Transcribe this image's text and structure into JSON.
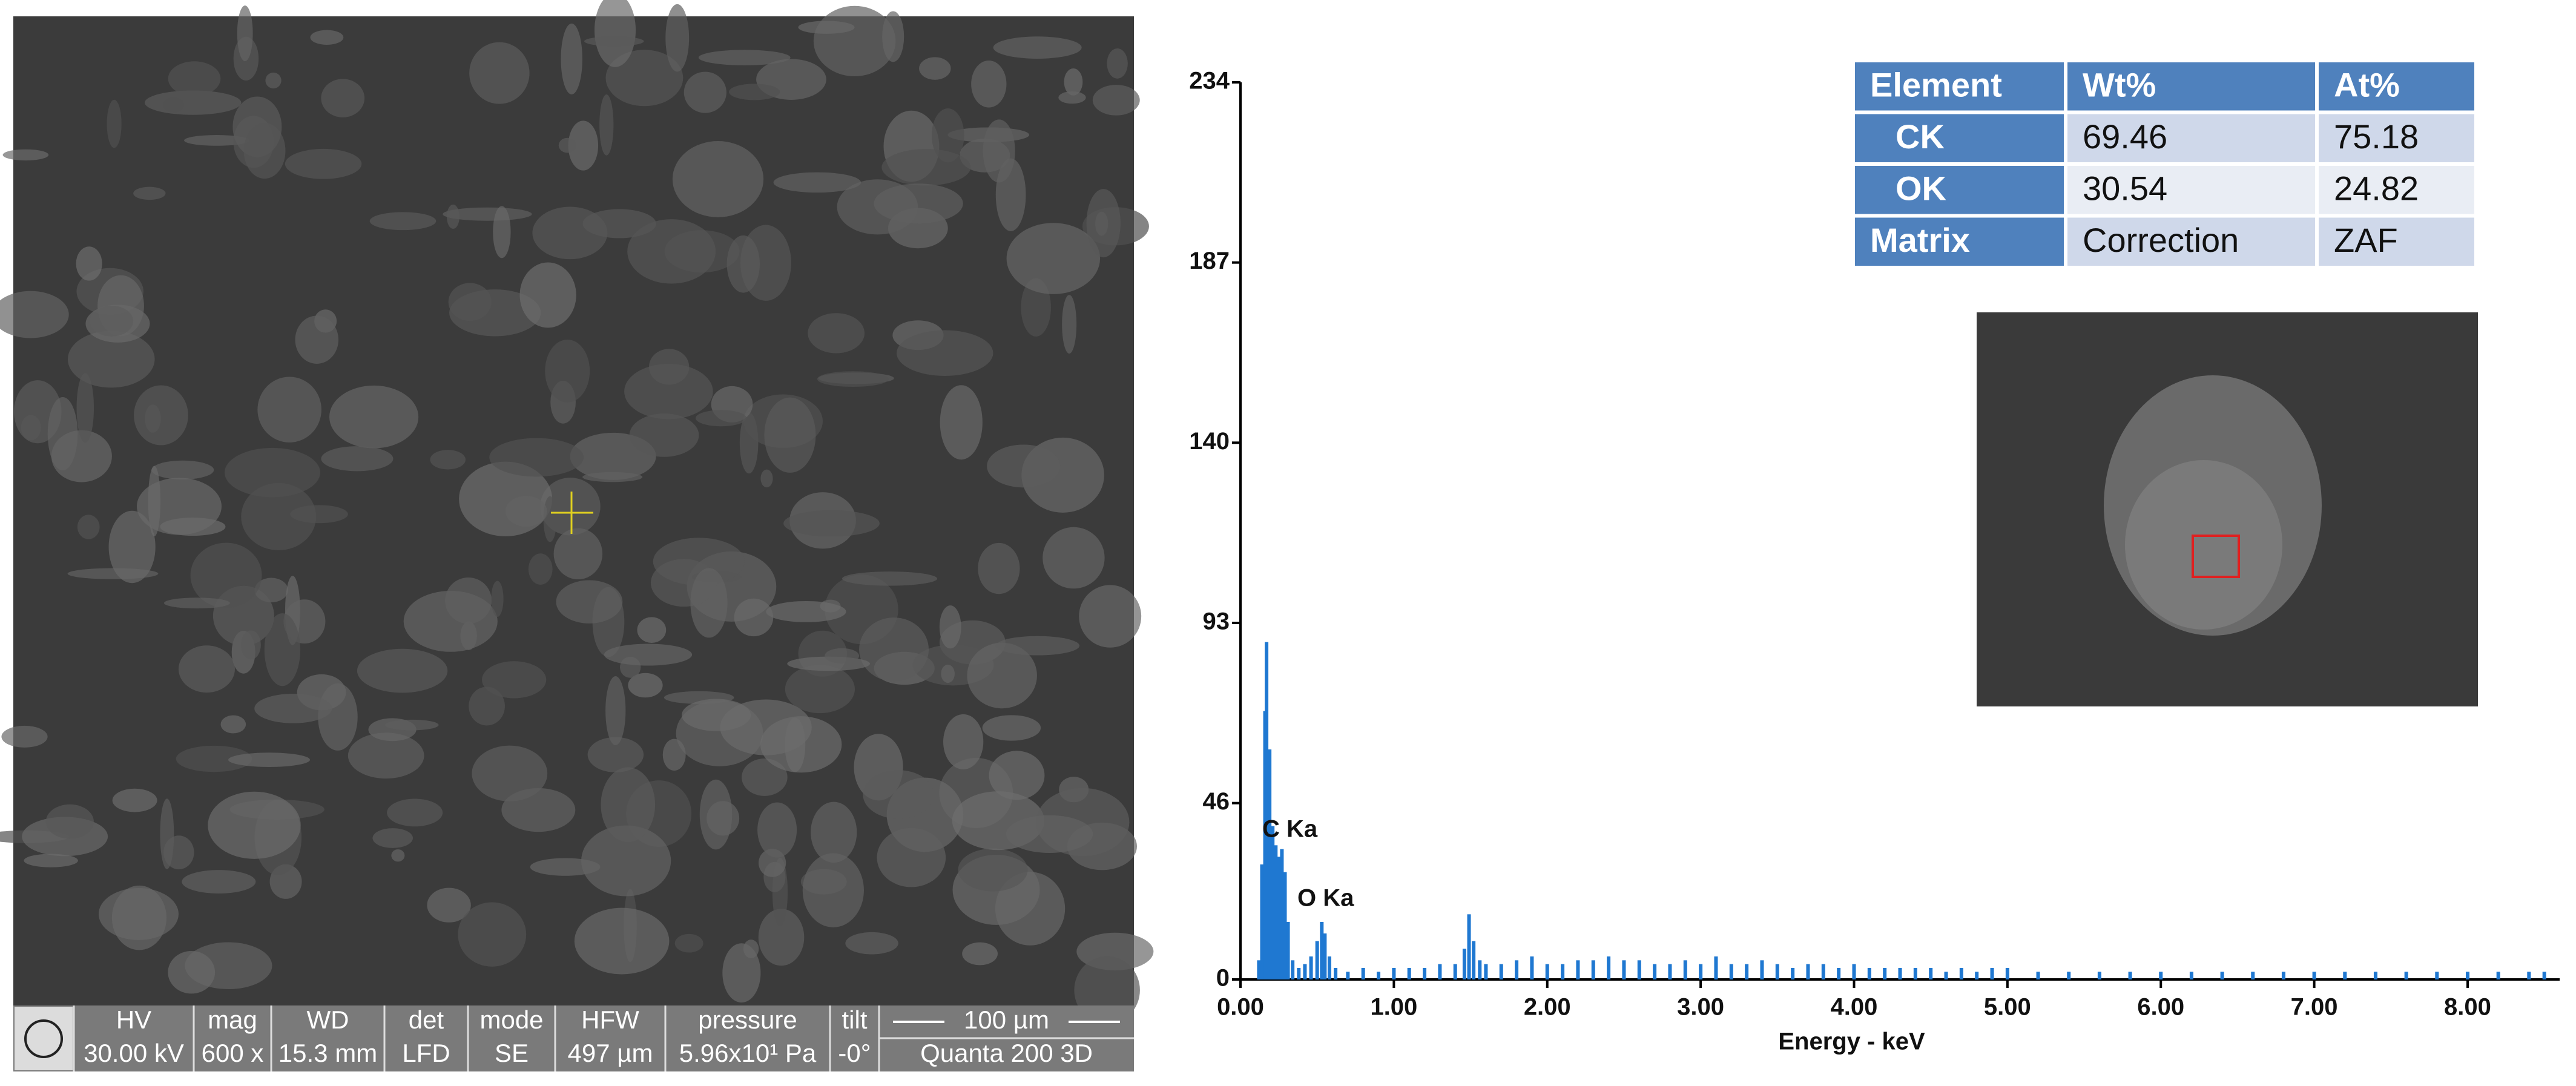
{
  "sem": {
    "status": [
      {
        "label": "HV",
        "value": "30.00 kV"
      },
      {
        "label": "mag",
        "value": "600 x"
      },
      {
        "label": "WD",
        "value": "15.3 mm"
      },
      {
        "label": "det",
        "value": "LFD"
      },
      {
        "label": "mode",
        "value": "SE"
      },
      {
        "label": "HFW",
        "value": "497 µm"
      },
      {
        "label": "pressure",
        "value": "5.96x10¹ Pa"
      },
      {
        "label": "tilt",
        "value": "-0°"
      },
      {
        "label": "100 µm",
        "value": "Quanta 200 3D"
      }
    ]
  },
  "table": {
    "header": [
      "Element",
      "Wt%",
      "At%"
    ],
    "rows": [
      [
        "CK",
        "69.46",
        "75.18"
      ],
      [
        "OK",
        "30.54",
        "24.82"
      ],
      [
        "Matrix",
        "Correction",
        "ZAF"
      ]
    ]
  },
  "chart_data": {
    "type": "bar",
    "x_label": "Energy - keV",
    "color": "#1f78d1",
    "annotations": [
      "C Ka",
      "O Ka"
    ],
    "x": [
      0.12,
      0.14,
      0.16,
      0.17,
      0.19,
      0.21,
      0.23,
      0.25,
      0.27,
      0.29,
      0.31,
      0.34,
      0.38,
      0.42,
      0.46,
      0.5,
      0.53,
      0.55,
      0.58,
      0.62,
      0.7,
      0.8,
      0.9,
      1.0,
      1.1,
      1.2,
      1.3,
      1.4,
      1.46,
      1.49,
      1.52,
      1.56,
      1.6,
      1.7,
      1.8,
      1.9,
      2.0,
      2.1,
      2.2,
      2.3,
      2.4,
      2.5,
      2.6,
      2.7,
      2.8,
      2.9,
      3.0,
      3.1,
      3.2,
      3.3,
      3.4,
      3.5,
      3.6,
      3.7,
      3.8,
      3.9,
      4.0,
      4.1,
      4.2,
      4.3,
      4.4,
      4.5,
      4.6,
      4.7,
      4.8,
      4.9,
      5.0,
      5.2,
      5.4,
      5.6,
      5.8,
      6.0,
      6.2,
      6.4,
      6.6,
      6.8,
      7.0,
      7.2,
      7.4,
      7.6,
      7.8,
      8.0,
      8.2,
      8.4,
      8.5
    ],
    "values": [
      5,
      30,
      70,
      88,
      60,
      40,
      35,
      32,
      34,
      28,
      15,
      5,
      3,
      4,
      6,
      10,
      15,
      12,
      6,
      3,
      2,
      3,
      2,
      3,
      3,
      3,
      4,
      4,
      8,
      17,
      10,
      5,
      4,
      4,
      5,
      6,
      4,
      4,
      5,
      5,
      6,
      5,
      5,
      4,
      4,
      5,
      4,
      6,
      4,
      4,
      5,
      4,
      3,
      4,
      4,
      3,
      4,
      3,
      3,
      3,
      3,
      3,
      2,
      3,
      2,
      3,
      3,
      2,
      2,
      2,
      2,
      2,
      2,
      2,
      2,
      2,
      2,
      2,
      2,
      2,
      2,
      2,
      2,
      2,
      2
    ],
    "xlim": [
      0,
      8.6
    ],
    "ylim": [
      0,
      234
    ],
    "yticks": [
      0,
      46,
      93,
      140,
      187,
      234
    ],
    "xticks": [
      {
        "value": 0,
        "label": "0.00"
      },
      {
        "value": 1,
        "label": "1.00"
      },
      {
        "value": 2,
        "label": "2.00"
      },
      {
        "value": 3,
        "label": "3.00"
      },
      {
        "value": 4,
        "label": "4.00"
      },
      {
        "value": 5,
        "label": "5.00"
      },
      {
        "value": 6,
        "label": "6.00"
      },
      {
        "value": 7,
        "label": "7.00"
      },
      {
        "value": 8,
        "label": "8.00"
      }
    ]
  }
}
